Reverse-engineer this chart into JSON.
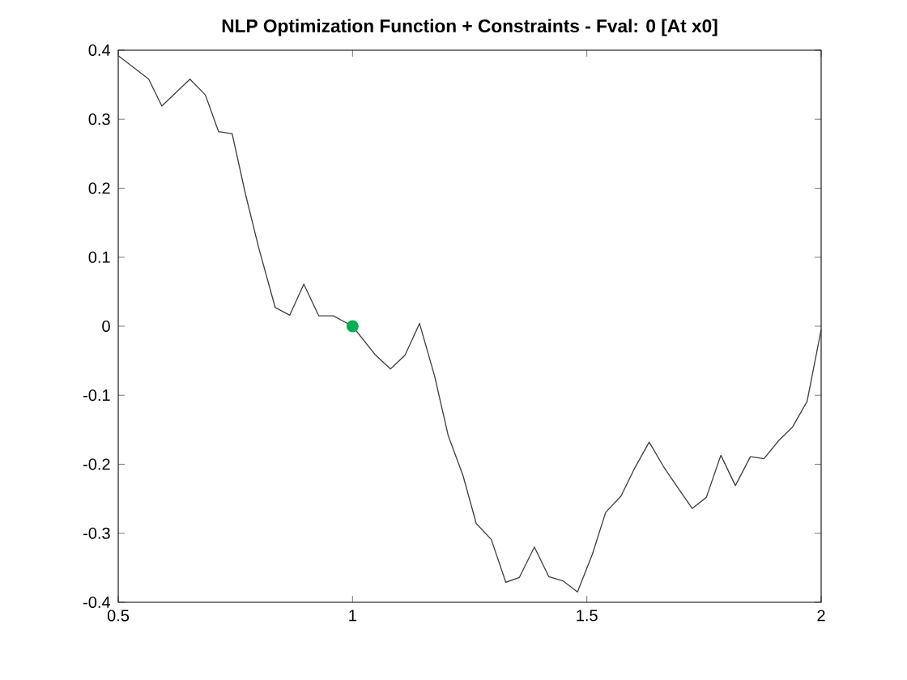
{
  "chart_data": {
    "type": "line",
    "title": "NLP Optimization Function + Constraints - Fval: 0 [At x0]",
    "xlim": [
      0.5,
      2
    ],
    "ylim": [
      -0.4,
      0.4
    ],
    "xticks": [
      0.5,
      1,
      1.5,
      2
    ],
    "yticks": [
      -0.4,
      -0.3,
      -0.2,
      -0.1,
      0,
      0.1,
      0.2,
      0.3,
      0.4
    ],
    "grid": false,
    "series": [
      {
        "color": "#404040",
        "marker": "none",
        "x": [
          0.5,
          0.565,
          0.593,
          0.653,
          0.686,
          0.714,
          0.743,
          0.772,
          0.8,
          0.835,
          0.866,
          0.896,
          0.928,
          0.959,
          1.0,
          1.048,
          1.081,
          1.112,
          1.143,
          1.175,
          1.204,
          1.236,
          1.264,
          1.296,
          1.327,
          1.356,
          1.388,
          1.419,
          1.449,
          1.48,
          1.512,
          1.54,
          1.573,
          1.601,
          1.633,
          1.665,
          1.694,
          1.725,
          1.755,
          1.786,
          1.817,
          1.849,
          1.878,
          1.909,
          1.939,
          1.97,
          2.0
        ],
        "values": [
          0.392,
          0.358,
          0.319,
          0.358,
          0.335,
          0.282,
          0.279,
          0.19,
          0.113,
          0.027,
          0.016,
          0.061,
          0.015,
          0.015,
          0.0,
          -0.041,
          -0.062,
          -0.042,
          0.004,
          -0.072,
          -0.158,
          -0.217,
          -0.286,
          -0.309,
          -0.371,
          -0.364,
          -0.32,
          -0.363,
          -0.369,
          -0.385,
          -0.33,
          -0.27,
          -0.246,
          -0.207,
          -0.168,
          -0.205,
          -0.234,
          -0.264,
          -0.248,
          -0.187,
          -0.231,
          -0.189,
          -0.192,
          -0.166,
          -0.146,
          -0.109,
          -0.005
        ]
      },
      {
        "type": "scatter",
        "color": "#00b050",
        "marker": "circle",
        "x": [
          1.0
        ],
        "values": [
          0.0
        ]
      }
    ]
  }
}
